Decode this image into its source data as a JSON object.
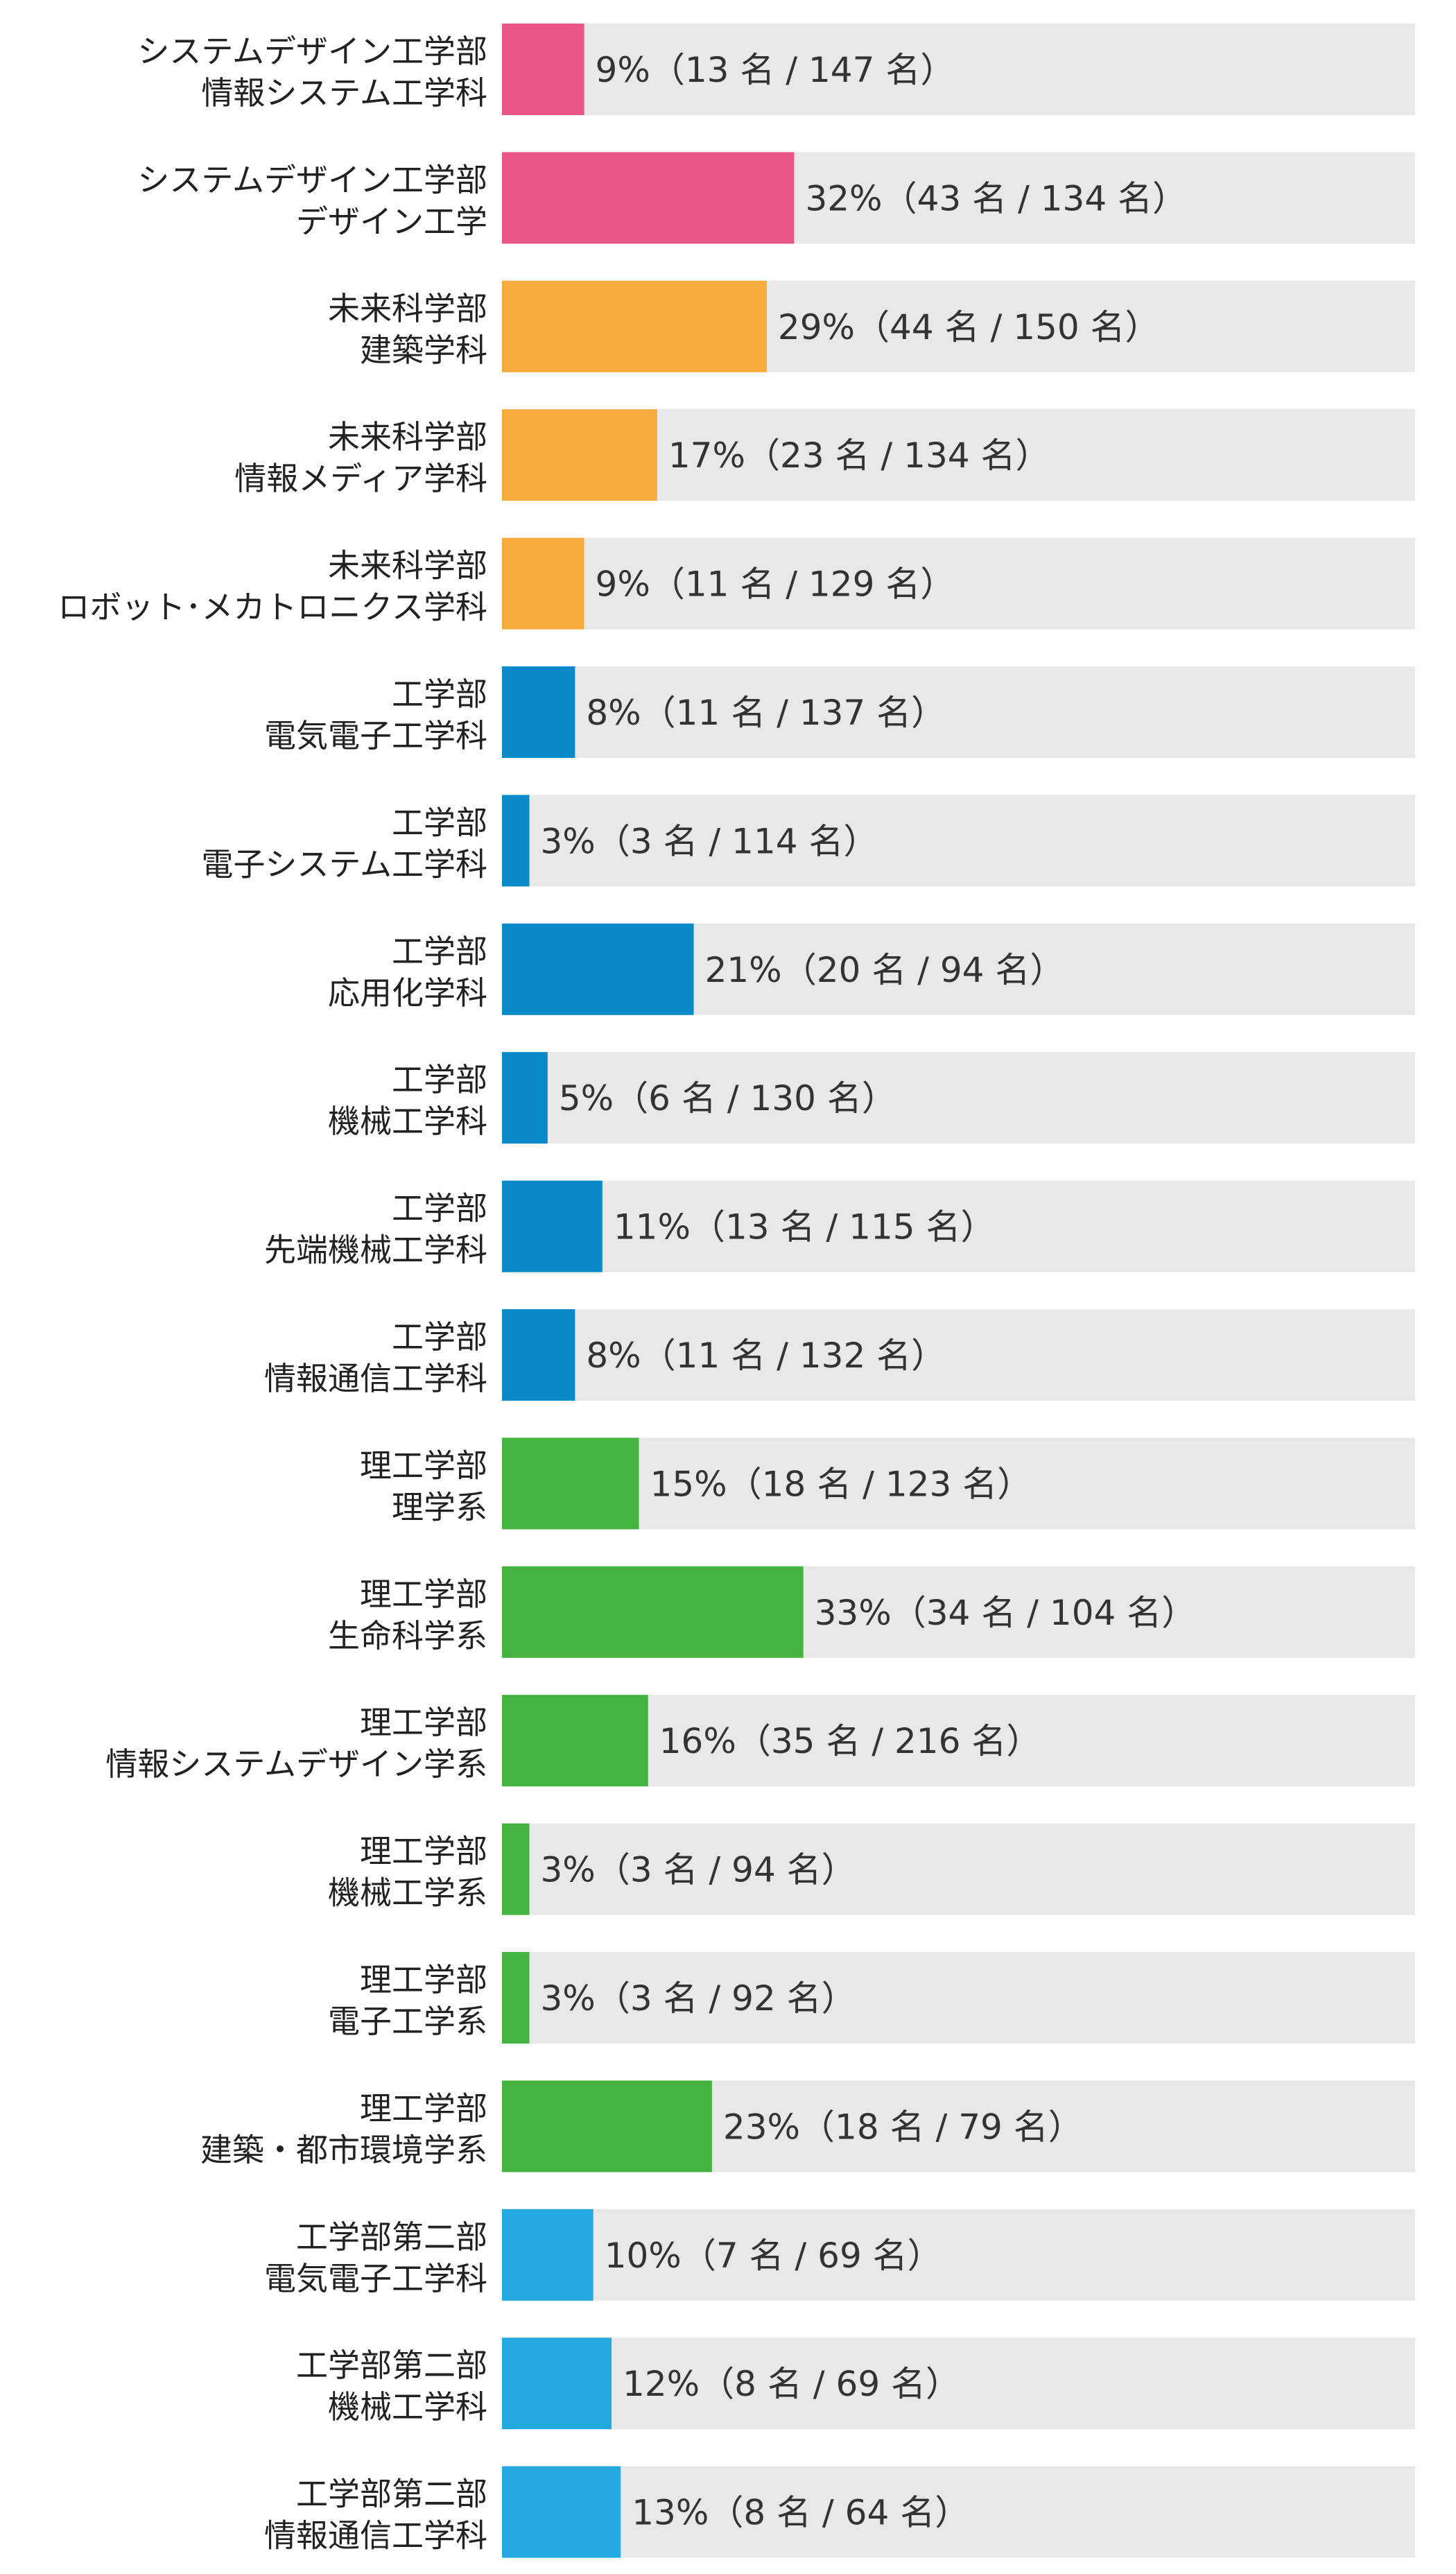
{
  "colors": {
    "track": "#e8e8e8",
    "system_design": "#e95585",
    "future_science": "#f5ac3c",
    "engineering": "#0a8ac8",
    "science_engineering": "#45b340",
    "engineering_second": "#24aae0"
  },
  "chart_data": {
    "type": "bar",
    "orientation": "horizontal",
    "xlim": [
      0,
      100
    ],
    "title": "",
    "xlabel": "",
    "ylabel": "",
    "grid": false,
    "categories": [
      [
        "システムデザイン工学部",
        "情報システム工学科"
      ],
      [
        "システムデザイン工学部",
        "デザイン工学"
      ],
      [
        "未来科学部",
        "建築学科"
      ],
      [
        "未来科学部",
        "情報メディア学科"
      ],
      [
        "未来科学部",
        "ロボット･メカトロニクス学科"
      ],
      [
        "工学部",
        "電気電子工学科"
      ],
      [
        "工学部",
        "電子システム工学科"
      ],
      [
        "工学部",
        "応用化学科"
      ],
      [
        "工学部",
        "機械工学科"
      ],
      [
        "工学部",
        "先端機械工学科"
      ],
      [
        "工学部",
        "情報通信工学科"
      ],
      [
        "理工学部",
        "理学系"
      ],
      [
        "理工学部",
        "生命科学系"
      ],
      [
        "理工学部",
        "情報システムデザイン学系"
      ],
      [
        "理工学部",
        "機械工学系"
      ],
      [
        "理工学部",
        "電子工学系"
      ],
      [
        "理工学部",
        "建築・都市環境学系"
      ],
      [
        "工学部第二部",
        "電気電子工学科"
      ],
      [
        "工学部第二部",
        "機械工学科"
      ],
      [
        "工学部第二部",
        "情報通信工学科"
      ]
    ],
    "values": [
      9,
      32,
      29,
      17,
      9,
      8,
      3,
      21,
      5,
      11,
      8,
      15,
      33,
      16,
      3,
      3,
      23,
      10,
      12,
      13
    ],
    "counts": [
      13,
      43,
      44,
      23,
      11,
      11,
      3,
      20,
      6,
      13,
      11,
      18,
      34,
      35,
      3,
      3,
      18,
      7,
      8,
      8
    ],
    "totals": [
      147,
      134,
      150,
      134,
      129,
      137,
      114,
      94,
      130,
      115,
      132,
      123,
      104,
      216,
      94,
      92,
      79,
      69,
      69,
      64
    ],
    "color_keys": [
      "system_design",
      "system_design",
      "future_science",
      "future_science",
      "future_science",
      "engineering",
      "engineering",
      "engineering",
      "engineering",
      "engineering",
      "engineering",
      "science_engineering",
      "science_engineering",
      "science_engineering",
      "science_engineering",
      "science_engineering",
      "science_engineering",
      "engineering_second",
      "engineering_second",
      "engineering_second"
    ],
    "data_labels": [
      "9%（13 名 / 147 名）",
      "32%（43 名 / 134 名）",
      "29%（44 名 / 150 名）",
      "17%（23 名 / 134 名）",
      "9%（11 名 / 129 名）",
      "8%（11 名 / 137 名）",
      "3%（3 名 / 114 名）",
      "21%（20 名 / 94 名）",
      "5%（6 名 / 130 名）",
      "11%（13 名 / 115 名）",
      "8%（11 名 / 132 名）",
      "15%（18 名 / 123 名）",
      "33%（34 名 / 104 名）",
      "16%（35 名 / 216 名）",
      "3%（3 名 / 94 名）",
      "3%（3 名 / 92 名）",
      "23%（18 名 / 79 名）",
      "10%（7 名 / 69 名）",
      "12%（8 名 / 69 名）",
      "13%（8 名 / 64 名）"
    ]
  }
}
